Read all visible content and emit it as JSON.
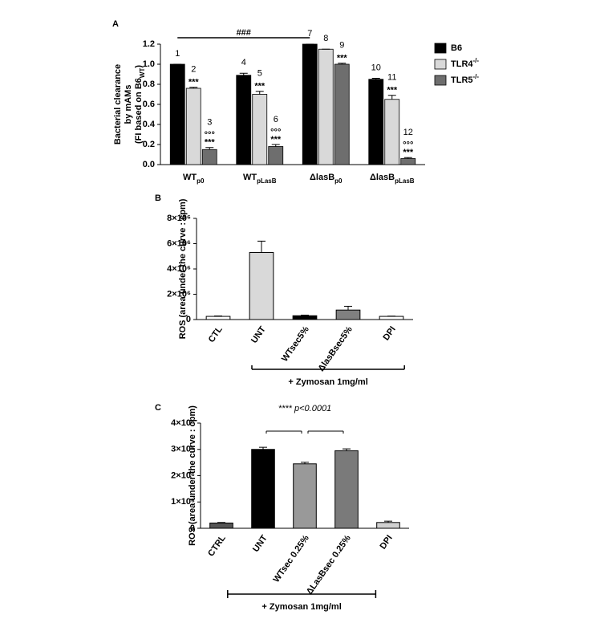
{
  "chart_data": [
    {
      "type": "bar",
      "panel": "A",
      "ylabel_lines": [
        "Bacterial clearance",
        "by mAMs"
      ],
      "ylabel_last": {
        "text": "(FI based on B6",
        "sub": "WT",
        "end": ")"
      },
      "categories": [
        "WT",
        "WT",
        "ΔlasB",
        "ΔlasB"
      ],
      "category_subscripts": [
        "p0",
        "pLasB",
        "p0",
        "pLasB"
      ],
      "ylim": [
        0,
        1.2
      ],
      "yticks": [
        {
          "value": 0,
          "label": "0.0"
        },
        0.2,
        0.4,
        0.6,
        0.8,
        {
          "value": 1,
          "label": "1.0"
        },
        1.2
      ],
      "bracket_label": "###",
      "legend": "right",
      "series": [
        {
          "name": "B6",
          "color": "#000000",
          "values": [
            1.0,
            0.89,
            1.2,
            0.85
          ],
          "errors": [
            0,
            0.02,
            0,
            0.01
          ],
          "numbers": [
            "1",
            "4",
            "7",
            "10"
          ]
        },
        {
          "name": "TLR4",
          "name_sup": "-/-",
          "color": "#d9d9d9",
          "values": [
            0.76,
            0.7,
            1.15,
            0.65
          ],
          "errors": [
            0.01,
            0.03,
            0,
            0.04
          ],
          "numbers": [
            "2",
            "5",
            "8",
            "11"
          ],
          "annotations": [
            [
              "***"
            ],
            [
              "***"
            ],
            [],
            [
              "***"
            ]
          ]
        },
        {
          "name": "TLR5",
          "name_sup": "-/-",
          "color": "#6e6e6e",
          "values": [
            0.15,
            0.18,
            1.0,
            0.06
          ],
          "errors": [
            0.02,
            0.02,
            0.01,
            0.01
          ],
          "numbers": [
            "3",
            "6",
            "9",
            "12"
          ],
          "annotations": [
            [
              "°°°",
              "***"
            ],
            [
              "°°°",
              "***"
            ],
            [
              "***"
            ],
            [
              "°°°",
              "***"
            ]
          ]
        }
      ]
    },
    {
      "type": "bar",
      "panel": "B",
      "ylabel": "ROS (area under the curve : cpm)",
      "categories": [
        "CTL",
        "UNT",
        "WTsec5%",
        "ΔlasBsec5%",
        "DPI"
      ],
      "values": [
        250000,
        5300000,
        300000,
        750000,
        250000
      ],
      "errors": [
        30000,
        900000,
        50000,
        300000,
        20000
      ],
      "colors": [
        "#ffffff",
        "#d9d9d9",
        "#000000",
        "#808080",
        "#ffffff"
      ],
      "ylim": [
        0,
        8000000
      ],
      "yticks": [
        0,
        {
          "value": 2000000,
          "label": "2×10⁶"
        },
        {
          "value": 4000000,
          "label": "4×10⁶"
        },
        {
          "value": 6000000,
          "label": "6×10⁶"
        },
        {
          "value": 8000000,
          "label": "8×10⁶"
        }
      ],
      "zymosan_label": "+ Zymosan 1mg/ml"
    },
    {
      "type": "bar",
      "panel": "C",
      "ylabel": "ROS (area under the curve : cpm)",
      "significance": "**** p<0.0001",
      "categories": [
        "CTRL",
        "UNT",
        "WTsec 0.25%",
        "ΔLasBsec 0.25%",
        "DPI"
      ],
      "values": [
        200000,
        3000000,
        2450000,
        2950000,
        220000
      ],
      "errors": [
        20000,
        80000,
        60000,
        70000,
        50000
      ],
      "colors": [
        "#555555",
        "#000000",
        "#999999",
        "#7a7a7a",
        "#d0d0d0"
      ],
      "ylim": [
        0,
        4000000
      ],
      "yticks": [
        0,
        {
          "value": 1000000,
          "label": "1×10⁶"
        },
        {
          "value": 2000000,
          "label": "2×10⁶"
        },
        {
          "value": 3000000,
          "label": "3×10⁶"
        },
        {
          "value": 4000000,
          "label": "4×10⁶"
        }
      ],
      "zymosan_label": "+ Zymosan 1mg/ml"
    }
  ]
}
